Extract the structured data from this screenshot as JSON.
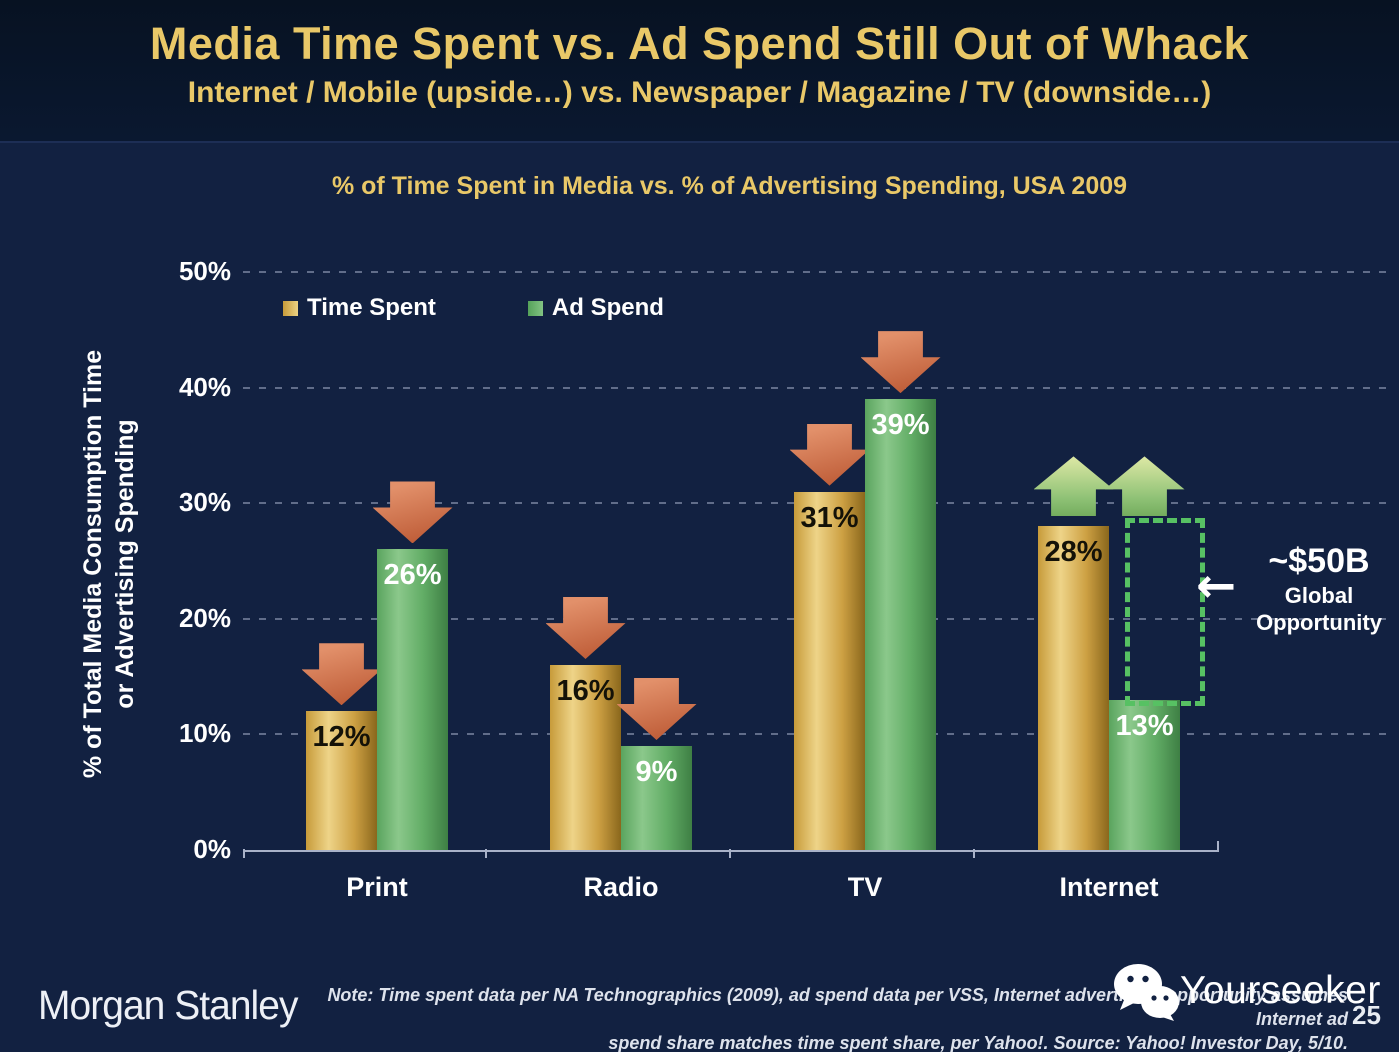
{
  "slide": {
    "title": "Media Time Spent vs. Ad Spend Still Out of Whack",
    "subtitle": "Internet / Mobile (upside…) vs. Newspaper / Magazine / TV (downside…)"
  },
  "chart_data": {
    "type": "bar",
    "title": "% of Time Spent in Media vs. % of Advertising Spending, USA 2009",
    "ylabel": [
      "% of Total Media Consumption Time",
      "or Advertising Spending"
    ],
    "categories": [
      "Print",
      "Radio",
      "TV",
      "Internet"
    ],
    "series": [
      {
        "name": "Time Spent",
        "values": [
          12,
          16,
          31,
          28
        ],
        "labels": [
          "12%",
          "16%",
          "31%",
          "28%"
        ],
        "color": "#d5a945",
        "label_color": "#141208"
      },
      {
        "name": "Ad Spend",
        "values": [
          26,
          9,
          39,
          13
        ],
        "labels": [
          "26%",
          "9%",
          "39%",
          "13%"
        ],
        "color": "#5fae63",
        "label_color": "#ffffff"
      }
    ],
    "ylim": [
      0,
      50
    ],
    "yticks": [
      "0%",
      "10%",
      "20%",
      "30%",
      "40%",
      "50%"
    ],
    "grid": "dashed-horizontal",
    "legend_position": "top-left",
    "trend_arrows": [
      [
        "down",
        "down"
      ],
      [
        "down",
        "down"
      ],
      [
        "down",
        "down"
      ],
      [
        "up",
        "up"
      ]
    ],
    "annotation": {
      "heading": "~$50B",
      "line1": "Global",
      "line2": "Opportunity",
      "arrow_glyph": "←",
      "target": "gap between Internet time spent (28%) and ad spend (13%)"
    }
  },
  "footer": {
    "logo": "Morgan Stanley",
    "note_line1": "Note: Time spent data per NA Technographics (2009), ad spend data per VSS, Internet advertising opportunity assumes Internet ad",
    "note_line2": "spend share matches time spent share, per Yahoo!. Source: Yahoo! Investor Day, 5/10.",
    "watermark": "Yourseeker",
    "page_number": "25"
  },
  "colors": {
    "accent_gold": "#e9c868",
    "bar_gold": "#d5a945",
    "bar_green": "#5fae63",
    "arrow_down": "#c9653f",
    "arrow_up": "#9cc87c",
    "dotted_green": "#57c163",
    "background": "#122141",
    "header_background": "#0a1830"
  }
}
